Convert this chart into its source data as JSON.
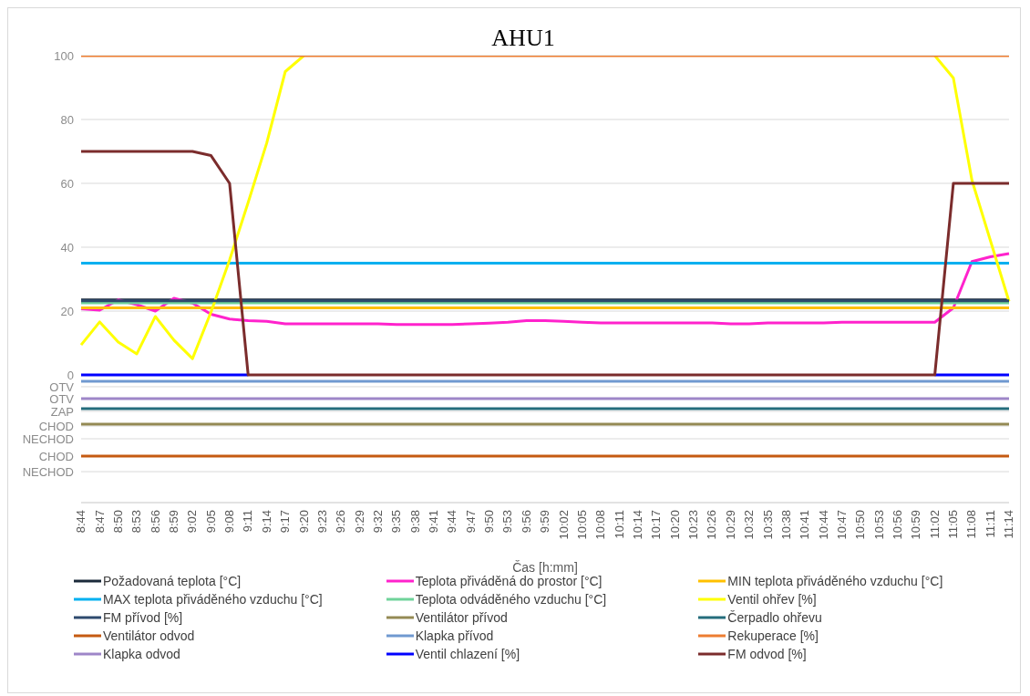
{
  "chart_data": {
    "type": "line",
    "title": "AHU1",
    "xlabel": "Čas [h:mm]",
    "categories": [
      "8:44",
      "8:47",
      "8:50",
      "8:53",
      "8:56",
      "8:59",
      "9:02",
      "9:05",
      "9:08",
      "9:11",
      "9:14",
      "9:17",
      "9:20",
      "9:23",
      "9:26",
      "9:29",
      "9:32",
      "9:35",
      "9:38",
      "9:41",
      "9:44",
      "9:47",
      "9:50",
      "9:53",
      "9:56",
      "9:59",
      "10:02",
      "10:05",
      "10:08",
      "10:11",
      "10:14",
      "10:17",
      "10:20",
      "10:23",
      "10:26",
      "10:29",
      "10:32",
      "10:35",
      "10:38",
      "10:41",
      "10:44",
      "10:47",
      "10:50",
      "10:53",
      "10:56",
      "10:59",
      "11:02",
      "11:05",
      "11:08",
      "11:11",
      "11:14"
    ],
    "ylim": [
      -40,
      100
    ],
    "yticks": [
      100,
      80,
      60,
      40,
      20,
      0,
      {
        "value": -3.7,
        "label": "OTV"
      },
      {
        "value": -7.4,
        "label": "OTV"
      },
      {
        "value": -11.4,
        "label": "ZAP"
      },
      {
        "value": -16,
        "label": "CHOD"
      },
      {
        "value": -20,
        "label": "NECHOD"
      },
      {
        "value": -25.4,
        "label": "CHOD"
      },
      {
        "value": -30.3,
        "label": "NECHOD"
      },
      {
        "value": -40,
        "label": null
      }
    ],
    "grid": "y",
    "legend": "bottom",
    "marker": "none",
    "line_style": "solid",
    "series": [
      {
        "name": "Požadovaná teplota [°C]",
        "color": "#1b2a3a",
        "values": [
          23.5,
          23.5,
          23.5,
          23.5,
          23.5,
          23.5,
          23.5,
          23.5,
          23.5,
          23.5,
          23.5,
          23.5,
          23.5,
          23.5,
          23.5,
          23.5,
          23.5,
          23.5,
          23.5,
          23.5,
          23.5,
          23.5,
          23.5,
          23.5,
          23.5,
          23.5,
          23.5,
          23.5,
          23.5,
          23.5,
          23.5,
          23.5,
          23.5,
          23.5,
          23.5,
          23.5,
          23.5,
          23.5,
          23.5,
          23.5,
          23.5,
          23.5,
          23.5,
          23.5,
          23.5,
          23.5,
          23.5,
          23.5,
          23.5,
          23.5,
          23.5
        ]
      },
      {
        "name": "Teplota přiváděná do prostor [°C]",
        "color": "#ff22cc",
        "values": [
          20.7,
          20.3,
          23.5,
          22,
          20,
          24,
          22.5,
          19,
          17.5,
          17,
          16.8,
          16,
          16,
          16,
          16,
          16,
          16,
          15.8,
          15.8,
          15.8,
          15.8,
          16,
          16.2,
          16.5,
          17,
          17,
          16.8,
          16.5,
          16.3,
          16.3,
          16.3,
          16.3,
          16.3,
          16.3,
          16.3,
          16,
          16,
          16.3,
          16.3,
          16.3,
          16.3,
          16.5,
          16.5,
          16.5,
          16.5,
          16.5,
          16.5,
          21,
          35.5,
          37,
          38
        ]
      },
      {
        "name": "MIN teplota přiváděného vzduchu [°C]",
        "color": "#ffc000",
        "values": [
          21,
          21,
          21,
          21,
          21,
          21,
          21,
          21,
          21,
          21,
          21,
          21,
          21,
          21,
          21,
          21,
          21,
          21,
          21,
          21,
          21,
          21,
          21,
          21,
          21,
          21,
          21,
          21,
          21,
          21,
          21,
          21,
          21,
          21,
          21,
          21,
          21,
          21,
          21,
          21,
          21,
          21,
          21,
          21,
          21,
          21,
          21,
          21,
          21,
          21,
          21
        ]
      },
      {
        "name": "MAX teplota přiváděného vzduchu [°C]",
        "color": "#00b0f0",
        "values": [
          35,
          35,
          35,
          35,
          35,
          35,
          35,
          35,
          35,
          35,
          35,
          35,
          35,
          35,
          35,
          35,
          35,
          35,
          35,
          35,
          35,
          35,
          35,
          35,
          35,
          35,
          35,
          35,
          35,
          35,
          35,
          35,
          35,
          35,
          35,
          35,
          35,
          35,
          35,
          35,
          35,
          35,
          35,
          35,
          35,
          35,
          35,
          35,
          35,
          35,
          35
        ]
      },
      {
        "name": "Teplota odváděného vzduchu  [°C]",
        "color": "#6fd39a",
        "values": [
          22.6,
          22.6,
          22.6,
          22.6,
          22.6,
          22.6,
          22.6,
          22.6,
          22.6,
          22.6,
          22.6,
          22.6,
          22.6,
          22.6,
          22.6,
          22.6,
          22.6,
          22.6,
          22.6,
          22.6,
          22.6,
          22.6,
          22.6,
          22.6,
          22.6,
          22.6,
          22.6,
          22.6,
          22.6,
          22.6,
          22.6,
          22.6,
          22.6,
          22.6,
          22.6,
          22.6,
          22.6,
          22.6,
          22.6,
          22.6,
          22.6,
          22.6,
          22.6,
          22.6,
          22.6,
          22.6,
          22.6,
          22.6,
          22.6,
          22.6,
          22.6
        ]
      },
      {
        "name": "Ventil ohřev [%]",
        "color": "#ffff00",
        "values": [
          9.4,
          16.6,
          10.3,
          6.6,
          18.3,
          10.9,
          5.1,
          19.7,
          36,
          54,
          72.6,
          95,
          100,
          null,
          null,
          null,
          null,
          null,
          null,
          null,
          null,
          null,
          null,
          null,
          null,
          null,
          null,
          null,
          null,
          null,
          null,
          null,
          null,
          null,
          null,
          null,
          null,
          null,
          null,
          null,
          null,
          null,
          null,
          null,
          null,
          null,
          100,
          93,
          61,
          42,
          23
        ]
      },
      {
        "name": "FM přívod [%]",
        "color": "#2e4a6e",
        "values": [
          23.2,
          23.2,
          23.2,
          23.2,
          23.2,
          23.2,
          23.2,
          23.2,
          23.2,
          23.2,
          23.2,
          23.2,
          23.2,
          23.2,
          23.2,
          23.2,
          23.2,
          23.2,
          23.2,
          23.2,
          23.2,
          23.2,
          23.2,
          23.2,
          23.2,
          23.2,
          23.2,
          23.2,
          23.2,
          23.2,
          23.2,
          23.2,
          23.2,
          23.2,
          23.2,
          23.2,
          23.2,
          23.2,
          23.2,
          23.2,
          23.2,
          23.2,
          23.2,
          23.2,
          23.2,
          23.2,
          23.2,
          23.2,
          23.2,
          23.2,
          23.2
        ]
      },
      {
        "name": "Ventilátor přívod",
        "color": "#948a54",
        "values": [
          -15.4,
          -15.4,
          -15.4,
          -15.4,
          -15.4,
          -15.4,
          -15.4,
          -15.4,
          -15.4,
          -15.4,
          -15.4,
          -15.4,
          -15.4,
          -15.4,
          -15.4,
          -15.4,
          -15.4,
          -15.4,
          -15.4,
          -15.4,
          -15.4,
          -15.4,
          -15.4,
          -15.4,
          -15.4,
          -15.4,
          -15.4,
          -15.4,
          -15.4,
          -15.4,
          -15.4,
          -15.4,
          -15.4,
          -15.4,
          -15.4,
          -15.4,
          -15.4,
          -15.4,
          -15.4,
          -15.4,
          -15.4,
          -15.4,
          -15.4,
          -15.4,
          -15.4,
          -15.4,
          -15.4,
          -15.4,
          -15.4,
          -15.4,
          -15.4
        ]
      },
      {
        "name": "Čerpadlo ohřevu",
        "color": "#246d7c",
        "values": [
          -10.6,
          -10.6,
          -10.6,
          -10.6,
          -10.6,
          -10.6,
          -10.6,
          -10.6,
          -10.6,
          -10.6,
          -10.6,
          -10.6,
          -10.6,
          -10.6,
          -10.6,
          -10.6,
          -10.6,
          -10.6,
          -10.6,
          -10.6,
          -10.6,
          -10.6,
          -10.6,
          -10.6,
          -10.6,
          -10.6,
          -10.6,
          -10.6,
          -10.6,
          -10.6,
          -10.6,
          -10.6,
          -10.6,
          -10.6,
          -10.6,
          -10.6,
          -10.6,
          -10.6,
          -10.6,
          -10.6,
          -10.6,
          -10.6,
          -10.6,
          -10.6,
          -10.6,
          -10.6,
          -10.6,
          -10.6,
          -10.6,
          -10.6,
          -10.6
        ]
      },
      {
        "name": "Ventilátor odvod",
        "color": "#c55a11",
        "values": [
          -25.4,
          -25.4,
          -25.4,
          -25.4,
          -25.4,
          -25.4,
          -25.4,
          -25.4,
          -25.4,
          -25.4,
          -25.4,
          -25.4,
          -25.4,
          -25.4,
          -25.4,
          -25.4,
          -25.4,
          -25.4,
          -25.4,
          -25.4,
          -25.4,
          -25.4,
          -25.4,
          -25.4,
          -25.4,
          -25.4,
          -25.4,
          -25.4,
          -25.4,
          -25.4,
          -25.4,
          -25.4,
          -25.4,
          -25.4,
          -25.4,
          -25.4,
          -25.4,
          -25.4,
          -25.4,
          -25.4,
          -25.4,
          -25.4,
          -25.4,
          -25.4,
          -25.4,
          -25.4,
          -25.4,
          -25.4,
          -25.4,
          -25.4,
          -25.4
        ]
      },
      {
        "name": "Klapka přívod",
        "color": "#7099d0",
        "values": [
          -2,
          -2,
          -2,
          -2,
          -2,
          -2,
          -2,
          -2,
          -2,
          -2,
          -2,
          -2,
          -2,
          -2,
          -2,
          -2,
          -2,
          -2,
          -2,
          -2,
          -2,
          -2,
          -2,
          -2,
          -2,
          -2,
          -2,
          -2,
          -2,
          -2,
          -2,
          -2,
          -2,
          -2,
          -2,
          -2,
          -2,
          -2,
          -2,
          -2,
          -2,
          -2,
          -2,
          -2,
          -2,
          -2,
          -2,
          -2,
          -2,
          -2,
          -2
        ]
      },
      {
        "name": "Rekuperace [%]",
        "color": "#ed7d31",
        "values": [
          100,
          100,
          100,
          100,
          100,
          100,
          100,
          100,
          100,
          100,
          100,
          100,
          100,
          100,
          100,
          100,
          100,
          100,
          100,
          100,
          100,
          100,
          100,
          100,
          100,
          100,
          100,
          100,
          100,
          100,
          100,
          100,
          100,
          100,
          100,
          100,
          100,
          100,
          100,
          100,
          100,
          100,
          100,
          100,
          100,
          100,
          100,
          100,
          100,
          100,
          100
        ]
      },
      {
        "name": "Klapka odvod",
        "color": "#9e86c8",
        "values": [
          -7.4,
          -7.4,
          -7.4,
          -7.4,
          -7.4,
          -7.4,
          -7.4,
          -7.4,
          -7.4,
          -7.4,
          -7.4,
          -7.4,
          -7.4,
          -7.4,
          -7.4,
          -7.4,
          -7.4,
          -7.4,
          -7.4,
          -7.4,
          -7.4,
          -7.4,
          -7.4,
          -7.4,
          -7.4,
          -7.4,
          -7.4,
          -7.4,
          -7.4,
          -7.4,
          -7.4,
          -7.4,
          -7.4,
          -7.4,
          -7.4,
          -7.4,
          -7.4,
          -7.4,
          -7.4,
          -7.4,
          -7.4,
          -7.4,
          -7.4,
          -7.4,
          -7.4,
          -7.4,
          -7.4,
          -7.4,
          -7.4,
          -7.4,
          -7.4
        ]
      },
      {
        "name": "Ventil chlazení [%]",
        "color": "#0000ff",
        "values": [
          0,
          0,
          0,
          0,
          0,
          0,
          0,
          0,
          0,
          0,
          null,
          null,
          null,
          null,
          null,
          null,
          null,
          null,
          null,
          null,
          null,
          null,
          null,
          null,
          null,
          null,
          null,
          null,
          null,
          null,
          null,
          null,
          null,
          null,
          null,
          null,
          null,
          null,
          null,
          null,
          null,
          null,
          null,
          null,
          null,
          null,
          0,
          0,
          0,
          0,
          0
        ]
      },
      {
        "name": "FM odvod [%]",
        "color": "#7b2c2c",
        "values": [
          70,
          70,
          70,
          70,
          70,
          70,
          70,
          68.7,
          60,
          0,
          0,
          0,
          0,
          0,
          0,
          0,
          0,
          0,
          0,
          0,
          0,
          0,
          0,
          0,
          0,
          0,
          0,
          0,
          0,
          0,
          0,
          0,
          0,
          0,
          0,
          0,
          0,
          0,
          0,
          0,
          0,
          0,
          0,
          0,
          0,
          0,
          0,
          60,
          60,
          60,
          60
        ]
      }
    ]
  }
}
